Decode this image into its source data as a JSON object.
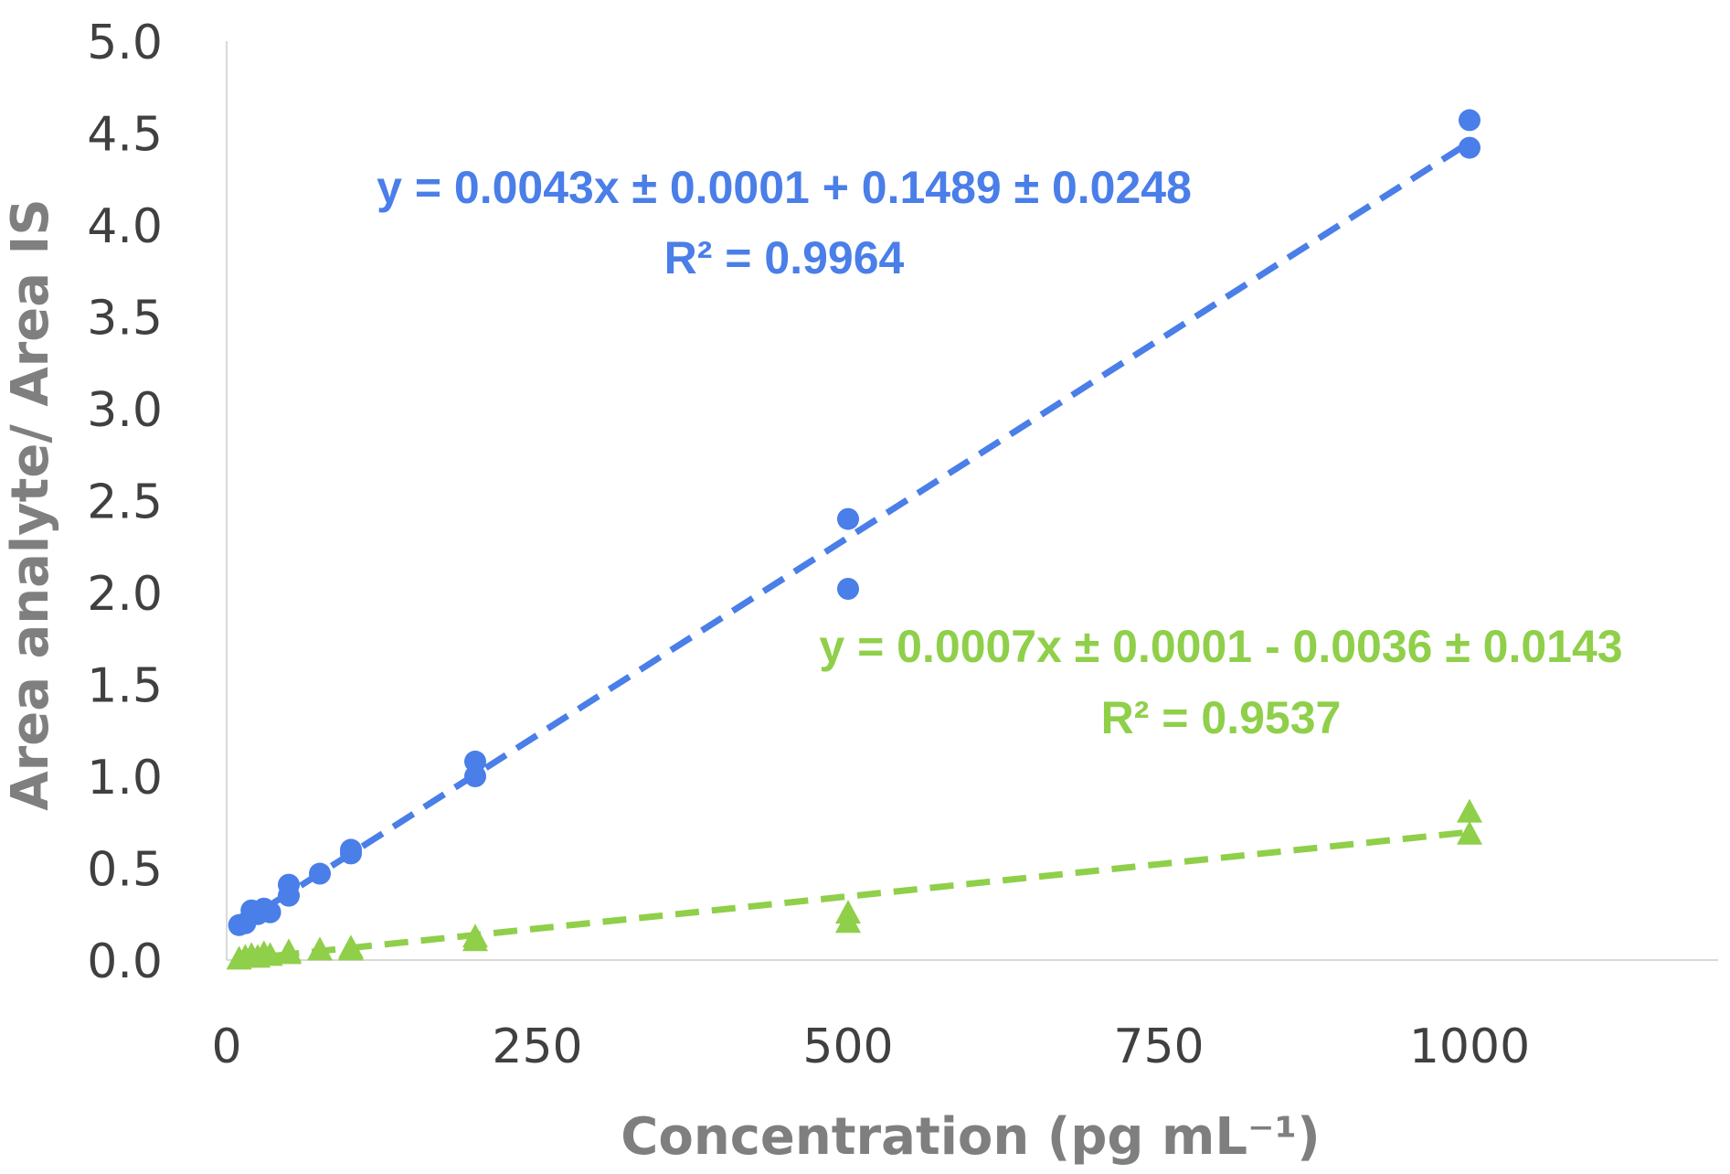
{
  "chart_data": {
    "type": "scatter",
    "title": "",
    "xlabel": "Concentration (pg mL⁻¹)",
    "ylabel": "Area analyte/ Area IS",
    "xlim": [
      0,
      1200
    ],
    "ylim": [
      0,
      5.0
    ],
    "xticks": [
      0,
      250,
      500,
      750,
      1000
    ],
    "xtick_labels": [
      "0",
      "250",
      "500",
      "750",
      "1000"
    ],
    "yticks": [
      0,
      0.5,
      1.0,
      1.5,
      2.0,
      2.5,
      3.0,
      3.5,
      4.0,
      4.5,
      5.0
    ],
    "ytick_labels": [
      "0.0",
      "0.5",
      "1.0",
      "1.5",
      "2.0",
      "2.5",
      "3.0",
      "3.5",
      "4.0",
      "4.5",
      "5.0"
    ],
    "grid": false,
    "series": [
      {
        "name": "blue",
        "marker": "circle",
        "color": "#4a7ee8",
        "x": [
          10,
          15,
          20,
          25,
          30,
          35,
          50,
          50,
          75,
          100,
          100,
          200,
          200,
          500,
          500,
          1000,
          1000
        ],
        "y": [
          0.19,
          0.2,
          0.27,
          0.25,
          0.28,
          0.26,
          0.41,
          0.35,
          0.47,
          0.6,
          0.58,
          1.08,
          1.0,
          2.4,
          2.02,
          4.57,
          4.42
        ],
        "trendline": {
          "slope": 0.0043,
          "intercept": 0.1489
        },
        "equation": "y = 0.0043x ± 0.0001 + 0.1489 ± 0.0248",
        "r2": "R² = 0.9964"
      },
      {
        "name": "green",
        "marker": "triangle",
        "color": "#8fcf4a",
        "x": [
          10,
          15,
          20,
          25,
          30,
          35,
          50,
          50,
          75,
          100,
          100,
          200,
          200,
          500,
          500,
          1000,
          1000
        ],
        "y": [
          0.0,
          0.01,
          0.02,
          0.01,
          0.03,
          0.02,
          0.04,
          0.03,
          0.05,
          0.06,
          0.05,
          0.12,
          0.1,
          0.25,
          0.2,
          0.8,
          0.68
        ],
        "trendline": {
          "slope": 0.0007,
          "intercept": -0.0036
        },
        "equation": "y = 0.0007x ± 0.0001 - 0.0036 ± 0.0143",
        "r2": "R² = 0.9537"
      }
    ]
  }
}
